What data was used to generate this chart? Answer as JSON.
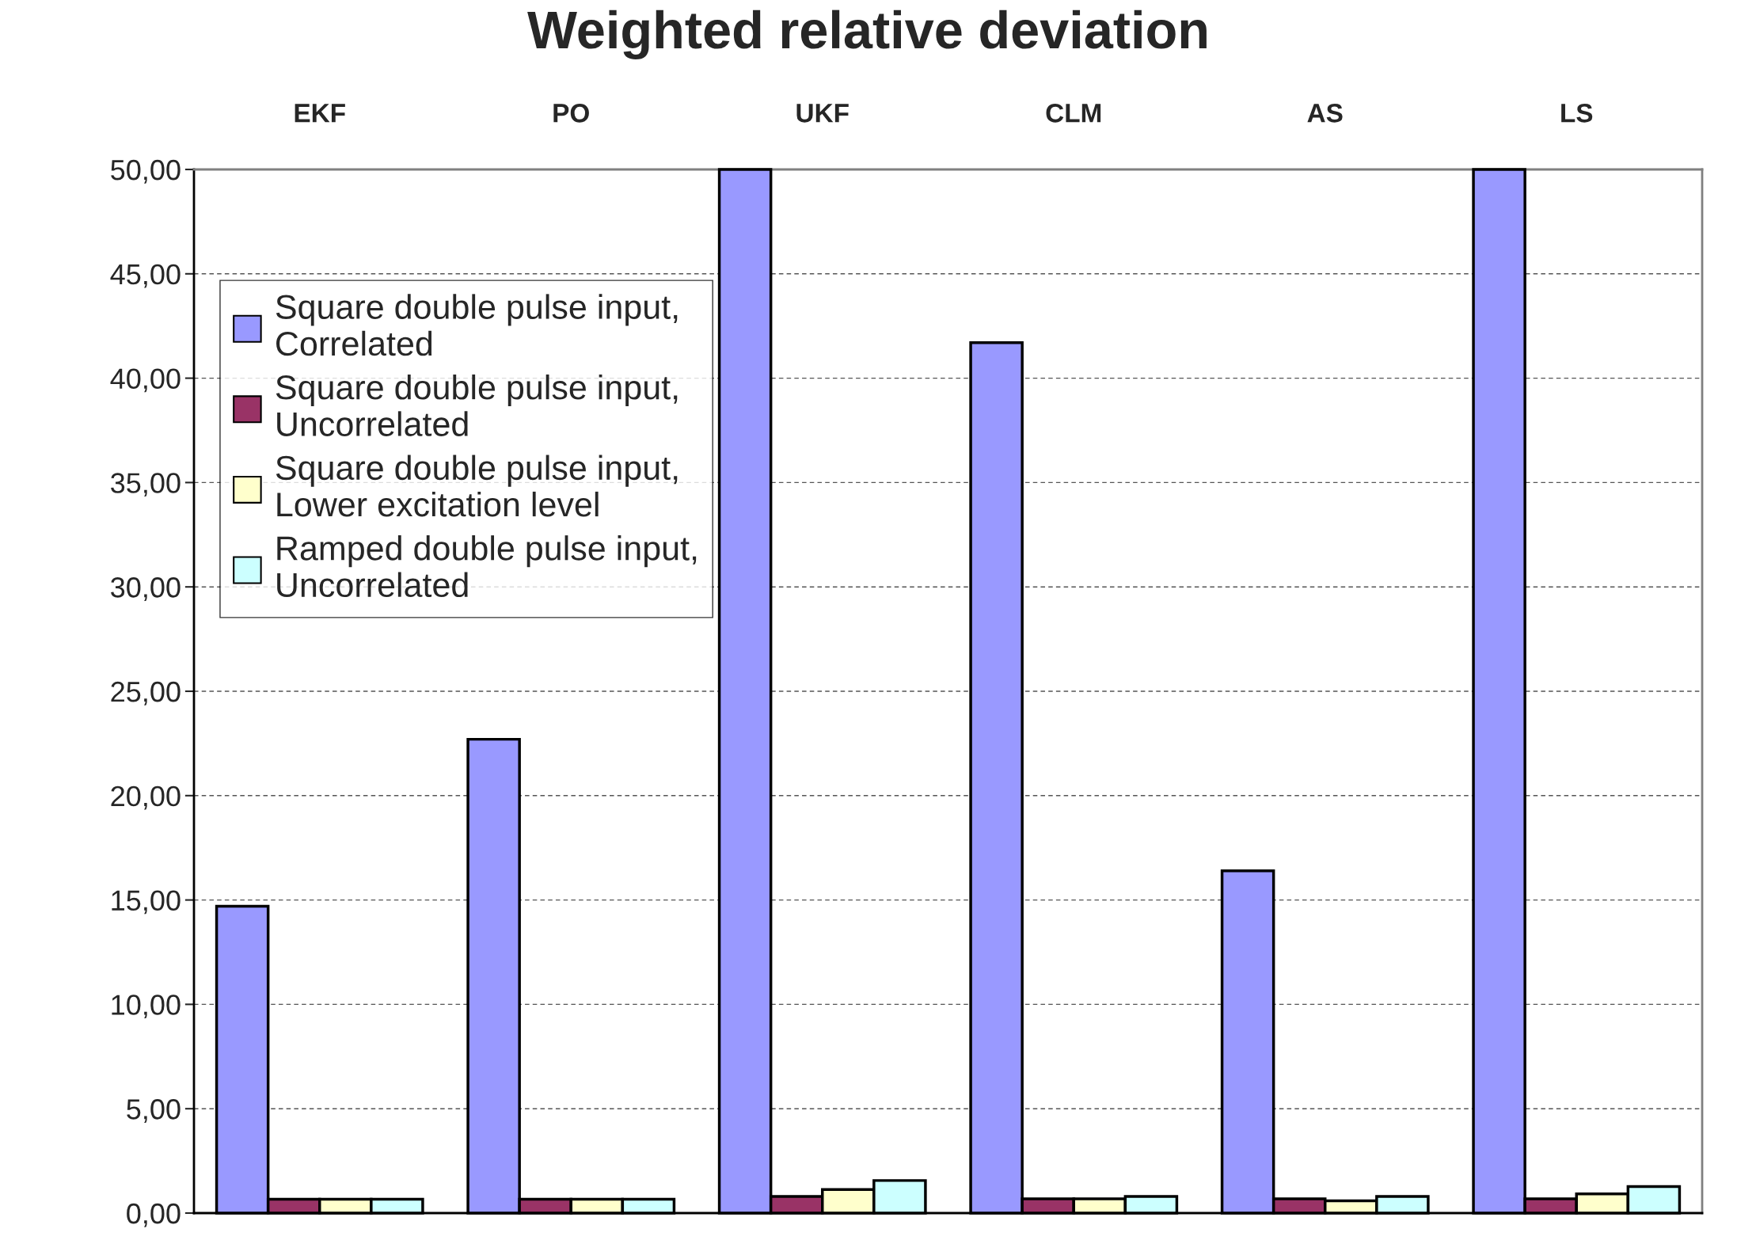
{
  "chart_data": {
    "type": "bar",
    "title": "Weighted relative deviation",
    "categories": [
      "EKF",
      "PO",
      "UKF",
      "CLM",
      "AS",
      "LS"
    ],
    "series": [
      {
        "name": "Square double pulse input,\nCorrelated",
        "color": "#9999ff",
        "values": [
          14.7,
          22.7,
          50,
          41.7,
          16.4,
          50
        ]
      },
      {
        "name": "Square double pulse input,\nUncorrelated",
        "color": "#993366",
        "values": [
          0.66,
          0.66,
          0.8,
          0.68,
          0.68,
          0.68
        ]
      },
      {
        "name": "Square double pulse input,\nLower excitation level",
        "color": "#ffffcc",
        "values": [
          0.66,
          0.66,
          1.13,
          0.68,
          0.59,
          0.92
        ]
      },
      {
        "name": "Ramped double pulse input,\nUncorrelated",
        "color": "#ccffff",
        "values": [
          0.66,
          0.66,
          1.56,
          0.8,
          0.8,
          1.27
        ]
      }
    ],
    "ylim": [
      0,
      50
    ],
    "yticks": [
      {
        "value": 0,
        "label": "0,00"
      },
      {
        "value": 5,
        "label": "5,00"
      },
      {
        "value": 10,
        "label": "10,00"
      },
      {
        "value": 15,
        "label": "15,00"
      },
      {
        "value": 20,
        "label": "20,00"
      },
      {
        "value": 25,
        "label": "25,00"
      },
      {
        "value": 30,
        "label": "30,00"
      },
      {
        "value": 35,
        "label": "35,00"
      },
      {
        "value": 40,
        "label": "40,00"
      },
      {
        "value": 45,
        "label": "45,00"
      },
      {
        "value": 50,
        "label": "50,00"
      }
    ],
    "grid": "y",
    "legend": "top left"
  }
}
